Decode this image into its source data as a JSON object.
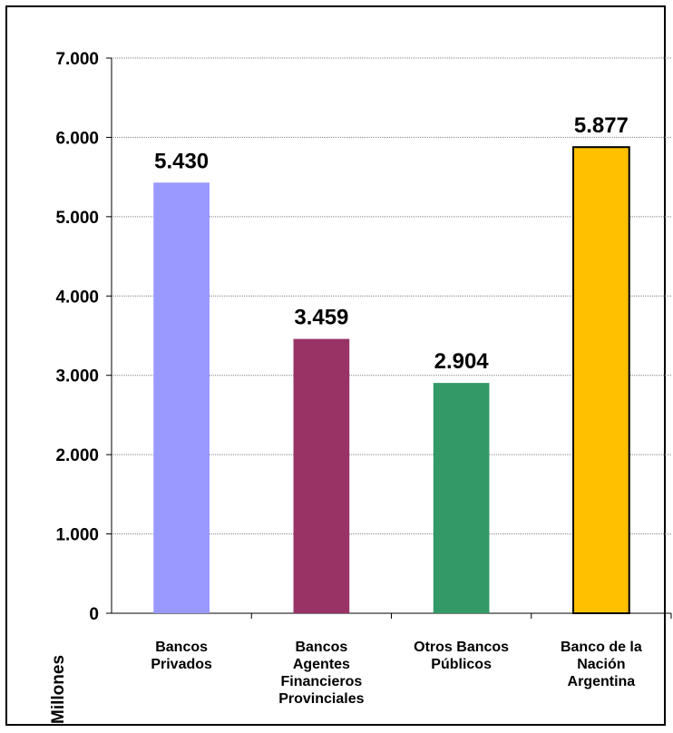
{
  "chart_data": {
    "type": "bar",
    "categories": [
      [
        "Bancos",
        "Privados"
      ],
      [
        "Bancos",
        "Agentes",
        "Financieros",
        "Provinciales"
      ],
      [
        "Otros Bancos",
        "Públicos"
      ],
      [
        "Banco de la",
        "Nación",
        "Argentina"
      ]
    ],
    "values": [
      5430,
      3459,
      2904,
      5877
    ],
    "value_labels": [
      "5.430",
      "3.459",
      "2.904",
      "5.877"
    ],
    "bar_colors": [
      "#9999ff",
      "#993366",
      "#339966",
      "#ffc000"
    ],
    "bar_outlined": [
      false,
      false,
      false,
      true
    ],
    "y_ticks": [
      0,
      1000,
      2000,
      3000,
      4000,
      5000,
      6000,
      7000
    ],
    "y_tick_labels": [
      "0",
      "1.000",
      "2.000",
      "3.000",
      "4.000",
      "5.000",
      "6.000",
      "7.000"
    ],
    "ylim": [
      0,
      7000
    ],
    "ylabel": "Millones",
    "title": "",
    "grid": true,
    "legend": "none"
  }
}
